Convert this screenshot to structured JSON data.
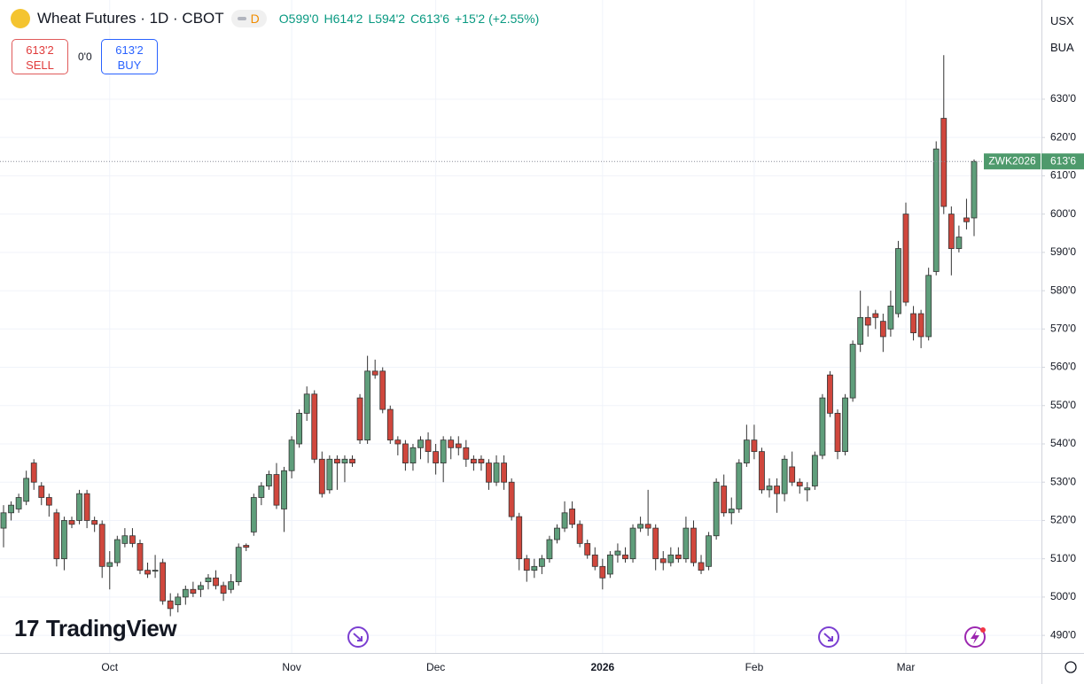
{
  "header": {
    "title": "Wheat Futures · 1D · CBOT",
    "badge": "D",
    "ohlc": [
      "O599'0",
      "H614'2",
      "L594'2",
      "C613'6",
      "+15'2 (+2.55%)"
    ]
  },
  "trade_panel": {
    "sell_price": "613'2",
    "sell_label": "SELL",
    "spread": "0'0",
    "buy_price": "613'2",
    "buy_label": "BUY"
  },
  "axis_units": [
    "USX",
    "BUA"
  ],
  "watermark": "TradingView",
  "chart_data": {
    "type": "candlestick",
    "grid": true,
    "up_color": "#5f9e7b",
    "down_color": "#d0473d",
    "border_color": "#333333",
    "last_price_color": "#4e9a6c",
    "ylim": [
      485.4,
      655.9
    ],
    "yticks": [
      {
        "value": 490,
        "label": "490'0"
      },
      {
        "value": 500,
        "label": "500'0"
      },
      {
        "value": 510,
        "label": "510'0"
      },
      {
        "value": 520,
        "label": "520'0"
      },
      {
        "value": 530,
        "label": "530'0"
      },
      {
        "value": 540,
        "label": "540'0"
      },
      {
        "value": 550,
        "label": "550'0"
      },
      {
        "value": 560,
        "label": "560'0"
      },
      {
        "value": 570,
        "label": "570'0"
      },
      {
        "value": 580,
        "label": "580'0"
      },
      {
        "value": 590,
        "label": "590'0"
      },
      {
        "value": 600,
        "label": "600'0"
      },
      {
        "value": 610,
        "label": "610'0"
      },
      {
        "value": 620,
        "label": "620'0"
      },
      {
        "value": 630,
        "label": "630'0"
      }
    ],
    "categories": [
      null,
      null,
      null,
      null,
      null,
      null,
      null,
      null,
      null,
      null,
      null,
      null,
      null,
      null,
      "Oct",
      null,
      null,
      null,
      null,
      null,
      null,
      null,
      null,
      null,
      null,
      null,
      null,
      null,
      null,
      null,
      null,
      null,
      null,
      null,
      null,
      null,
      null,
      null,
      "Nov",
      null,
      null,
      null,
      null,
      null,
      null,
      null,
      null,
      null,
      null,
      null,
      null,
      null,
      null,
      null,
      null,
      null,
      null,
      "Dec",
      null,
      null,
      null,
      null,
      null,
      null,
      null,
      null,
      null,
      null,
      null,
      null,
      null,
      null,
      null,
      null,
      null,
      null,
      null,
      null,
      null,
      "2026",
      null,
      null,
      null,
      null,
      null,
      null,
      null,
      null,
      null,
      null,
      null,
      null,
      null,
      null,
      null,
      null,
      null,
      null,
      null,
      "Feb",
      null,
      null,
      null,
      null,
      null,
      null,
      null,
      null,
      null,
      null,
      null,
      null,
      null,
      null,
      null,
      null,
      null,
      null,
      null,
      "Mar",
      null,
      null,
      null,
      null,
      null,
      null,
      null,
      null,
      null
    ],
    "last_price_label": "613'6",
    "series": [
      {
        "name": "ZWK2026",
        "open": [
          518,
          522,
          523,
          525,
          535,
          529,
          526,
          522,
          510,
          520,
          520,
          527,
          520,
          519,
          508,
          509,
          514,
          516,
          514,
          507,
          507,
          509,
          499,
          498,
          500,
          502,
          502,
          504,
          505,
          503,
          502,
          504,
          513.5,
          517,
          526,
          529,
          532,
          523,
          533,
          540,
          548,
          553,
          536,
          528,
          536,
          535,
          536,
          552,
          541,
          559,
          559,
          549,
          541,
          540,
          535,
          539,
          541,
          538,
          535,
          541,
          540,
          539,
          536,
          536,
          535,
          530,
          535,
          530,
          521,
          510,
          507,
          508,
          510,
          515,
          518,
          523,
          519,
          514,
          511,
          508,
          506,
          511,
          511,
          510,
          518,
          519,
          518,
          510,
          509,
          511,
          510,
          518,
          509,
          508,
          516,
          529,
          522,
          523,
          535,
          541,
          538,
          528,
          529,
          527,
          534,
          530,
          528,
          529,
          537,
          558,
          548,
          538,
          552,
          566,
          573,
          574,
          572,
          570,
          574,
          600,
          574,
          574,
          568,
          585,
          625,
          600,
          591,
          599,
          599
        ],
        "high": [
          524,
          525,
          527,
          533,
          536,
          530,
          527,
          523,
          521,
          521,
          528,
          528,
          521,
          520,
          512,
          516,
          518,
          518,
          515,
          509,
          511,
          510,
          501,
          501,
          503,
          504,
          504,
          506,
          507,
          504,
          506,
          514,
          514,
          527,
          530,
          533,
          535,
          534,
          542,
          549,
          555,
          554,
          538,
          537,
          537,
          537,
          537,
          553,
          563,
          562,
          560,
          550,
          542,
          541,
          540,
          542,
          543,
          540,
          542,
          542,
          542,
          541,
          537,
          537,
          536,
          537,
          537,
          531,
          522,
          511,
          510,
          511,
          516,
          519,
          525,
          525,
          520,
          515,
          513,
          510,
          512,
          514,
          513,
          519,
          521,
          528,
          519,
          512,
          513,
          513,
          521,
          520,
          511,
          517,
          531,
          532,
          526,
          536,
          545,
          545,
          539,
          531,
          531,
          537,
          538,
          531,
          530,
          538,
          553,
          559,
          549,
          553,
          567,
          580,
          576,
          575,
          574,
          580,
          593,
          603,
          576,
          575,
          586,
          619,
          641.5,
          602,
          597,
          604,
          614.25
        ],
        "low": [
          513,
          520,
          522,
          524,
          528,
          524,
          521,
          508,
          507,
          518,
          519,
          518,
          517,
          505,
          502,
          508,
          513,
          513,
          506,
          505,
          505,
          498,
          495,
          496,
          498,
          500,
          500,
          502,
          502,
          499,
          501,
          503,
          512,
          516,
          524,
          528,
          523,
          517,
          531,
          539,
          546,
          535,
          526,
          527,
          528,
          530,
          534,
          540,
          540,
          557,
          548,
          540,
          537,
          533,
          533,
          536,
          535,
          532,
          530,
          536,
          537,
          534,
          533,
          533,
          528,
          529,
          528,
          520,
          507,
          504,
          505,
          506,
          509,
          514,
          517,
          518,
          513,
          510,
          507,
          502,
          505,
          509,
          509,
          509,
          517,
          516,
          507,
          507,
          508,
          509,
          509,
          508,
          506,
          507,
          515,
          521,
          519,
          522,
          534,
          536,
          527,
          526,
          522,
          525,
          529,
          527,
          525,
          528,
          536,
          547,
          536,
          537,
          551,
          564,
          568,
          570,
          564,
          568,
          573,
          576,
          567,
          565,
          567,
          584,
          600,
          584,
          590,
          596,
          594.25
        ],
        "close": [
          522,
          524,
          526,
          531,
          530,
          526,
          524,
          510,
          520,
          519,
          527,
          520,
          519,
          508,
          509,
          515,
          516,
          514,
          507,
          506,
          507,
          499,
          497,
          500,
          502,
          501,
          503,
          505,
          503,
          501,
          504,
          513,
          513,
          526,
          529,
          532,
          524,
          533,
          541,
          548,
          553,
          536,
          527,
          536,
          535,
          536,
          535,
          541,
          559,
          558,
          549,
          541,
          540,
          535,
          539,
          541,
          538,
          535,
          541,
          539,
          539,
          536,
          535,
          535,
          530,
          535,
          530,
          521,
          510,
          507,
          508,
          510,
          515,
          518,
          522,
          519,
          514,
          511,
          508,
          505,
          511,
          512,
          510,
          518,
          519,
          518,
          510,
          509,
          511,
          510,
          518,
          509,
          507,
          516,
          530,
          522,
          523,
          535,
          541,
          538,
          528,
          529,
          527,
          536,
          530,
          529,
          528.5,
          537,
          552,
          548,
          538,
          552,
          566,
          573,
          571,
          573,
          568,
          576,
          591,
          577,
          569,
          568,
          584,
          617,
          602,
          591,
          594,
          598,
          613.75
        ]
      }
    ]
  }
}
